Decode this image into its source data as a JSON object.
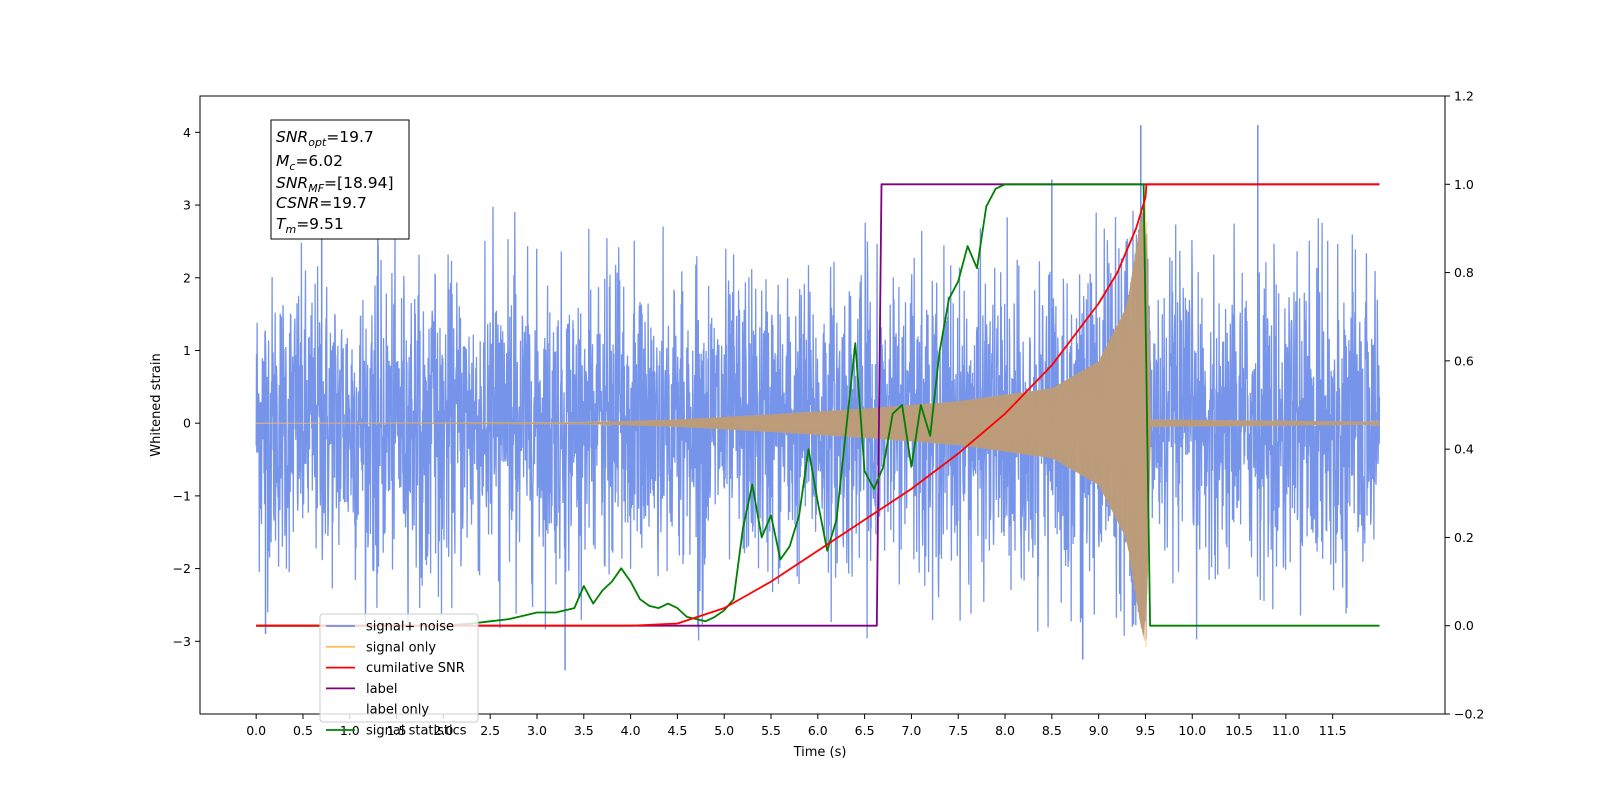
{
  "chart_data": {
    "type": "line",
    "xlabel": "Time (s)",
    "ylabel": "Whitened strain",
    "xlim": [
      -0.6,
      12.7
    ],
    "ylim": [
      -4.0,
      4.5
    ],
    "y2lim": [
      -0.2,
      1.2
    ],
    "xticks": [
      "0.0",
      "0.5",
      "1.0",
      "1.5",
      "2.0",
      "2.5",
      "3.0",
      "3.5",
      "4.0",
      "4.5",
      "5.0",
      "5.5",
      "6.0",
      "6.5",
      "7.0",
      "7.5",
      "8.0",
      "8.5",
      "9.0",
      "9.5",
      "10.0",
      "10.5",
      "11.0",
      "11.5"
    ],
    "yticks": [
      "4",
      "3",
      "2",
      "1",
      "0",
      "−1",
      "−2",
      "−3"
    ],
    "y2ticks": [
      "1.2",
      "1.0",
      "0.8",
      "0.6",
      "0.4",
      "0.2",
      "0.0",
      "−0.2"
    ],
    "info_box": {
      "snr_opt": {
        "base": "SNR",
        "sub": "opt",
        "value": "=19.7"
      },
      "mc": {
        "base": "M",
        "sub": "c",
        "value": "=6.02"
      },
      "snr_mf": {
        "base": "SNR",
        "sub": "MF",
        "value": "=[18.94]"
      },
      "csnr": {
        "base": "CSNR",
        "value": "=19.7"
      },
      "tm": {
        "base": "T",
        "sub": "m",
        "value": "=9.51"
      }
    },
    "noise": {
      "x_range": [
        0.0,
        12.0
      ],
      "typical_amplitude": 1.6,
      "spikes": [
        [
          0.7,
          2.6
        ],
        [
          1.3,
          2.6
        ],
        [
          8.5,
          3.35
        ],
        [
          9.45,
          4.1
        ],
        [
          10.7,
          4.1
        ],
        [
          3.3,
          -3.4
        ],
        [
          8.83,
          -3.25
        ],
        [
          0.1,
          -2.9
        ]
      ]
    },
    "signal": {
      "x_range": [
        0.0,
        12.0
      ],
      "envelope": [
        [
          0.0,
          0.0
        ],
        [
          3.5,
          0.01
        ],
        [
          4.5,
          0.05
        ],
        [
          5.5,
          0.12
        ],
        [
          6.5,
          0.2
        ],
        [
          7.5,
          0.3
        ],
        [
          8.5,
          0.48
        ],
        [
          9.0,
          0.85
        ],
        [
          9.3,
          1.6
        ],
        [
          9.45,
          2.8
        ],
        [
          9.51,
          3.1
        ],
        [
          9.55,
          0.05
        ],
        [
          12.0,
          0.02
        ]
      ]
    },
    "series": [
      {
        "name": "signal+ noise",
        "color": "#6f8ee8",
        "axis": "left"
      },
      {
        "name": "signal only",
        "color": "#ffbf66",
        "axis": "left"
      },
      {
        "name": "cumilative SNR",
        "color": "#ff0000",
        "axis": "right",
        "x": [
          0.0,
          4.0,
          4.5,
          5.0,
          5.5,
          6.0,
          6.5,
          7.0,
          7.5,
          8.0,
          8.5,
          9.0,
          9.2,
          9.3,
          9.4,
          9.5,
          9.51,
          12.0
        ],
        "y": [
          0.0,
          0.0,
          0.005,
          0.04,
          0.1,
          0.17,
          0.24,
          0.31,
          0.39,
          0.48,
          0.59,
          0.73,
          0.8,
          0.85,
          0.9,
          0.97,
          1.0,
          1.0
        ]
      },
      {
        "name": "label",
        "color": "#800080",
        "axis": "right",
        "x": [
          0.0,
          6.63,
          6.68,
          9.51,
          9.52,
          12.0
        ],
        "y": [
          0.0,
          0.0,
          1.0,
          1.0,
          1.0,
          1.0
        ]
      },
      {
        "name": "label only",
        "color": "#800080",
        "axis": "right"
      },
      {
        "name": "signal statistics",
        "color": "#008000",
        "axis": "right",
        "x": [
          0.0,
          2.0,
          2.3,
          2.5,
          2.7,
          2.9,
          3.0,
          3.2,
          3.4,
          3.5,
          3.6,
          3.7,
          3.8,
          3.9,
          4.0,
          4.1,
          4.2,
          4.3,
          4.4,
          4.5,
          4.6,
          4.8,
          4.9,
          5.0,
          5.1,
          5.2,
          5.3,
          5.4,
          5.5,
          5.6,
          5.7,
          5.8,
          5.9,
          6.0,
          6.1,
          6.2,
          6.3,
          6.4,
          6.5,
          6.6,
          6.7,
          6.8,
          6.9,
          7.0,
          7.1,
          7.2,
          7.3,
          7.4,
          7.5,
          7.6,
          7.7,
          7.8,
          7.9,
          8.0,
          8.2,
          8.5,
          9.0,
          9.48,
          9.55,
          12.0
        ],
        "y": [
          0.0,
          0.0,
          0.005,
          0.01,
          0.015,
          0.025,
          0.03,
          0.03,
          0.04,
          0.09,
          0.05,
          0.08,
          0.1,
          0.13,
          0.1,
          0.06,
          0.045,
          0.04,
          0.05,
          0.04,
          0.02,
          0.01,
          0.02,
          0.035,
          0.06,
          0.22,
          0.32,
          0.2,
          0.25,
          0.15,
          0.18,
          0.25,
          0.4,
          0.28,
          0.17,
          0.24,
          0.44,
          0.64,
          0.35,
          0.31,
          0.36,
          0.48,
          0.5,
          0.36,
          0.5,
          0.43,
          0.62,
          0.74,
          0.78,
          0.86,
          0.81,
          0.95,
          0.99,
          1.0,
          1.0,
          1.0,
          1.0,
          1.0,
          0.0,
          0.0
        ]
      }
    ],
    "legend_placement": "lower-left"
  }
}
